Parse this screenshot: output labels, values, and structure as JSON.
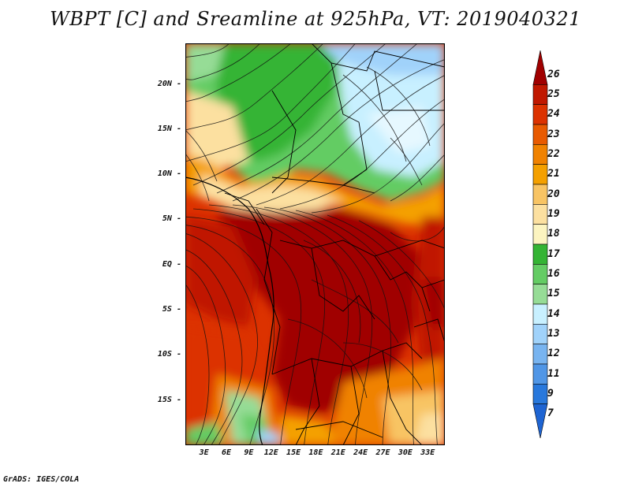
{
  "title": "WBPT [C] and Sreamline at 925hPa, VT: 2019040321",
  "credit": "GrADS: IGES/COLA",
  "y_ticks": [
    {
      "label": "20N",
      "lat": 20
    },
    {
      "label": "15N",
      "lat": 15
    },
    {
      "label": "10N",
      "lat": 10
    },
    {
      "label": "5N",
      "lat": 5
    },
    {
      "label": "EQ",
      "lat": 0
    },
    {
      "label": "5S",
      "lat": -5
    },
    {
      "label": "10S",
      "lat": -10
    },
    {
      "label": "15S",
      "lat": -15
    }
  ],
  "x_ticks": [
    {
      "label": "3E",
      "lon": 3
    },
    {
      "label": "6E",
      "lon": 6
    },
    {
      "label": "9E",
      "lon": 9
    },
    {
      "label": "12E",
      "lon": 12
    },
    {
      "label": "15E",
      "lon": 15
    },
    {
      "label": "18E",
      "lon": 18
    },
    {
      "label": "21E",
      "lon": 21
    },
    {
      "label": "24E",
      "lon": 24
    },
    {
      "label": "27E",
      "lon": 27
    },
    {
      "label": "30E",
      "lon": 30
    },
    {
      "label": "33E",
      "lon": 33
    }
  ],
  "lat_range": [
    -20,
    24.5
  ],
  "lon_range": [
    0.5,
    35.3
  ],
  "legend": {
    "labels": [
      "26",
      "25",
      "24",
      "23",
      "22",
      "21",
      "20",
      "19",
      "18",
      "17",
      "16",
      "15",
      "14",
      "13",
      "12",
      "11",
      "9",
      "7"
    ],
    "colors": [
      "#a00000",
      "#c01800",
      "#dc3200",
      "#e85a00",
      "#f08200",
      "#f4a000",
      "#f8c464",
      "#fce0a0",
      "#fcf4c0",
      "#34b434",
      "#64cc64",
      "#96dc96",
      "#c8f0ff",
      "#a0d2fa",
      "#78b4f0",
      "#5096e6",
      "#2878dc",
      "#1e64d2"
    ],
    "arrows": "both-ends"
  }
}
